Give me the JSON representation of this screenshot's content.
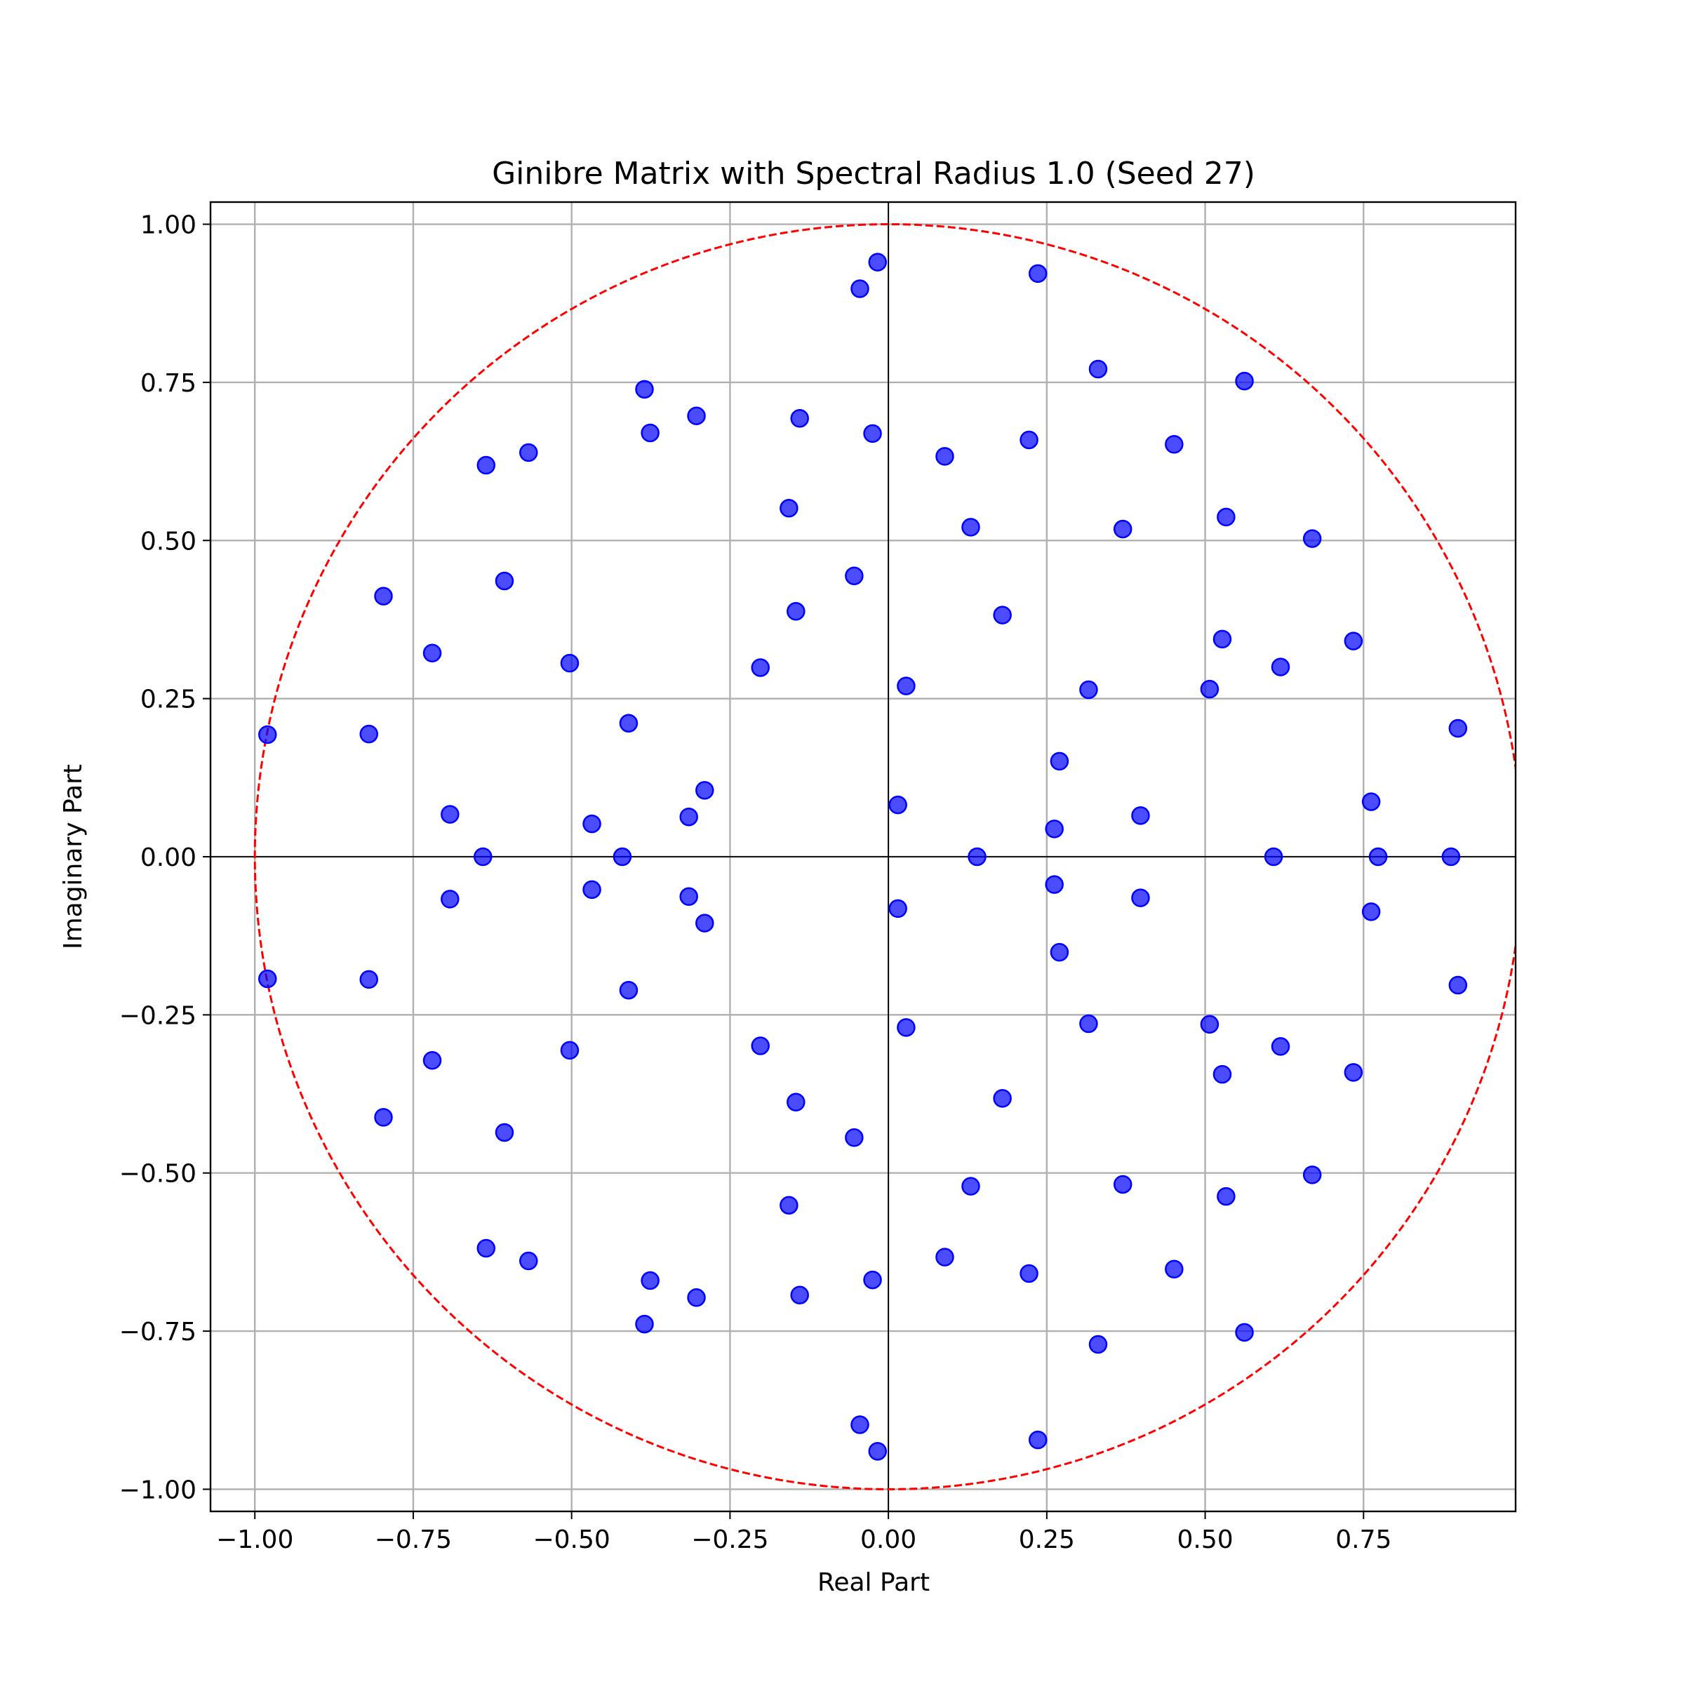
{
  "chart_data": {
    "type": "scatter",
    "title": "Ginibre Matrix with Spectral Radius 1.0 (Seed 27)",
    "xlabel": "Real Part",
    "ylabel": "Imaginary Part",
    "xlim": [
      -1.07,
      0.99
    ],
    "ylim": [
      -1.035,
      1.035
    ],
    "xticks": [
      -1.0,
      -0.75,
      -0.5,
      -0.25,
      0.0,
      0.25,
      0.5,
      0.75
    ],
    "xtick_labels": [
      "−1.00",
      "−0.75",
      "−0.50",
      "−0.25",
      "0.00",
      "0.25",
      "0.50",
      "0.75"
    ],
    "yticks": [
      1.0,
      0.75,
      0.5,
      0.25,
      0.0,
      -0.25,
      -0.5,
      -0.75,
      -1.0
    ],
    "ytick_labels": [
      "1.00",
      "0.75",
      "0.50",
      "0.25",
      "0.00",
      "−0.25",
      "−0.50",
      "−0.75",
      "−1.00"
    ],
    "grid": true,
    "reference_circle": {
      "radius": 1.0,
      "color": "#ff0000",
      "style": "dashed"
    },
    "point_color": "#0000ff",
    "axis_line_color": "#000000",
    "conjugate_pairs_upper": [
      [
        -0.98,
        0.193
      ],
      [
        -0.82,
        0.194
      ],
      [
        -0.797,
        0.412
      ],
      [
        -0.72,
        0.322
      ],
      [
        -0.692,
        0.067
      ],
      [
        -0.635,
        0.619
      ],
      [
        -0.606,
        0.436
      ],
      [
        -0.568,
        0.639
      ],
      [
        -0.503,
        0.306
      ],
      [
        -0.468,
        0.052
      ],
      [
        -0.41,
        0.211
      ],
      [
        -0.385,
        0.739
      ],
      [
        -0.376,
        0.67
      ],
      [
        -0.315,
        0.063
      ],
      [
        -0.303,
        0.697
      ],
      [
        -0.29,
        0.105
      ],
      [
        -0.202,
        0.299
      ],
      [
        -0.157,
        0.551
      ],
      [
        -0.146,
        0.388
      ],
      [
        -0.14,
        0.693
      ],
      [
        -0.054,
        0.444
      ],
      [
        -0.045,
        0.898
      ],
      [
        -0.025,
        0.669
      ],
      [
        -0.017,
        0.94
      ],
      [
        0.015,
        0.082
      ],
      [
        0.028,
        0.27
      ],
      [
        0.089,
        0.633
      ],
      [
        0.13,
        0.521
      ],
      [
        0.18,
        0.382
      ],
      [
        0.222,
        0.659
      ],
      [
        0.236,
        0.922
      ],
      [
        0.262,
        0.044
      ],
      [
        0.27,
        0.151
      ],
      [
        0.316,
        0.264
      ],
      [
        0.331,
        0.771
      ],
      [
        0.37,
        0.518
      ],
      [
        0.398,
        0.065
      ],
      [
        0.451,
        0.652
      ],
      [
        0.507,
        0.265
      ],
      [
        0.527,
        0.344
      ],
      [
        0.533,
        0.537
      ],
      [
        0.562,
        0.752
      ],
      [
        0.619,
        0.3
      ],
      [
        0.669,
        0.503
      ],
      [
        0.734,
        0.341
      ],
      [
        0.762,
        0.087
      ],
      [
        0.899,
        0.203
      ]
    ],
    "real_eigenvalues": [
      [
        -0.64,
        0.0
      ],
      [
        -0.42,
        0.0
      ],
      [
        0.14,
        0.0
      ],
      [
        0.608,
        0.0
      ],
      [
        0.773,
        0.0
      ],
      [
        0.888,
        0.0
      ]
    ]
  }
}
